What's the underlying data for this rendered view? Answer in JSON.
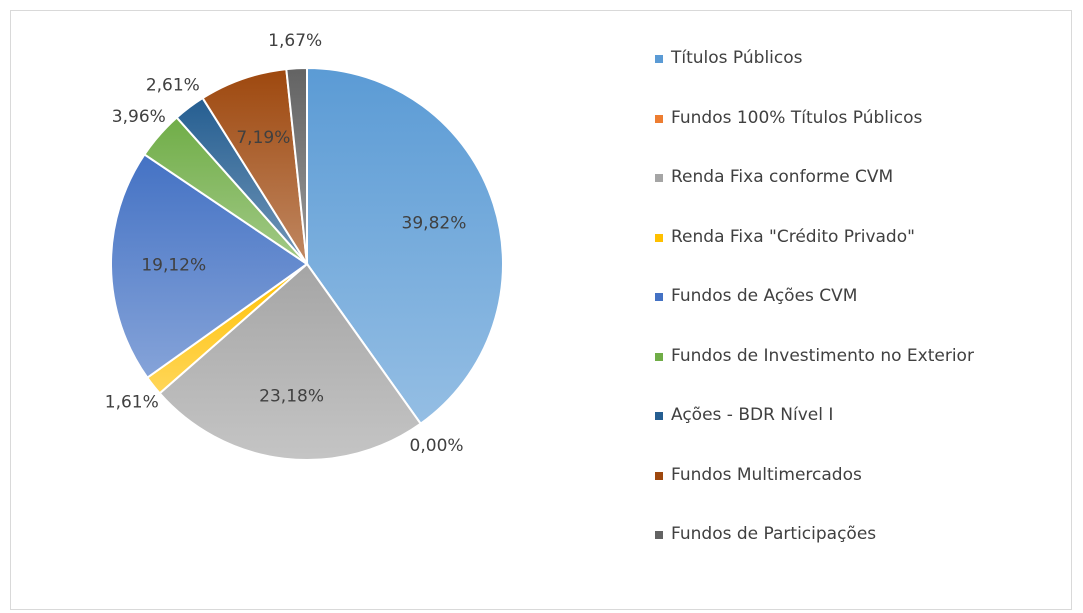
{
  "chart_data": {
    "type": "pie",
    "categories": [
      "Títulos Públicos",
      "Fundos 100% Títulos Públicos",
      "Renda Fixa conforme CVM",
      "Renda Fixa \"Crédito Privado\"",
      "Fundos de Ações CVM",
      "Fundos de Investimento no Exterior",
      "Ações - BDR Nível I",
      "Fundos Multimercados",
      "Fundos de Participações"
    ],
    "values": [
      39.82,
      0.0,
      23.18,
      1.61,
      19.12,
      3.96,
      2.61,
      7.19,
      1.67
    ],
    "value_labels": [
      "39,82%",
      "0,00%",
      "23,18%",
      "1,61%",
      "19,12%",
      "3,96%",
      "2,61%",
      "7,19%",
      "1,67%"
    ],
    "colors": [
      "#5b9bd5",
      "#ed7d31",
      "#a5a5a5",
      "#ffc000",
      "#4472c4",
      "#70ad47",
      "#255e91",
      "#9e480e",
      "#636363"
    ],
    "legend": "right"
  }
}
